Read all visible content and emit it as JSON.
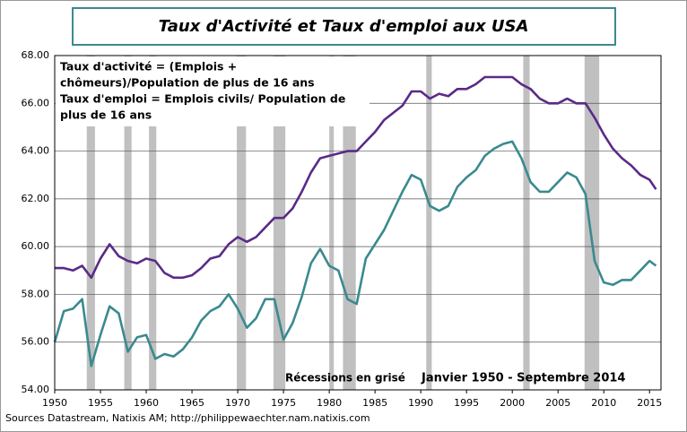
{
  "chart_data": {
    "type": "line",
    "title": "Taux d'Activité et Taux d'emploi aux USA",
    "annotations": [
      "Taux d'activité = (Emplois +",
      "chômeurs)/Population  de plus de 16 ans",
      "Taux d'emploi = Emplois civils/ Population de",
      "plus de 16 ans"
    ],
    "recession_note": "Récessions en grisé",
    "period_note": "Janvier 1950 - Septembre 2014",
    "source": "Sources Datastream, Natixis AM; http://philippewaechter.nam.natixis.com",
    "recession_color": "#c0c0c0",
    "recessions": [
      [
        1953.5,
        1954.4
      ],
      [
        1957.6,
        1958.4
      ],
      [
        1960.3,
        1961.1
      ],
      [
        1969.9,
        1970.9
      ],
      [
        1973.9,
        1975.2
      ],
      [
        1980.0,
        1980.5
      ],
      [
        1981.5,
        1982.9
      ],
      [
        1990.6,
        1991.2
      ],
      [
        2001.2,
        2001.9
      ],
      [
        2007.9,
        2009.5
      ]
    ],
    "x": [
      1950,
      1951,
      1952,
      1953,
      1954,
      1955,
      1956,
      1957,
      1958,
      1959,
      1960,
      1961,
      1962,
      1963,
      1964,
      1965,
      1966,
      1967,
      1968,
      1969,
      1970,
      1971,
      1972,
      1973,
      1974,
      1975,
      1976,
      1977,
      1978,
      1979,
      1980,
      1981,
      1982,
      1983,
      1984,
      1985,
      1986,
      1987,
      1988,
      1989,
      1990,
      1991,
      1992,
      1993,
      1994,
      1995,
      1996,
      1997,
      1998,
      1999,
      2000,
      2001,
      2002,
      2003,
      2004,
      2005,
      2006,
      2007,
      2008,
      2009,
      2010,
      2011,
      2012,
      2013,
      2014,
      2015,
      2015.7
    ],
    "series": [
      {
        "color": "#5b2a86",
        "values": [
          59.1,
          59.1,
          59.0,
          59.2,
          58.7,
          59.5,
          60.1,
          59.6,
          59.4,
          59.3,
          59.5,
          59.4,
          58.9,
          58.7,
          58.7,
          58.8,
          59.1,
          59.5,
          59.6,
          60.1,
          60.4,
          60.2,
          60.4,
          60.8,
          61.2,
          61.2,
          61.6,
          62.3,
          63.1,
          63.7,
          63.8,
          63.9,
          64.0,
          64.0,
          64.4,
          64.8,
          65.3,
          65.6,
          65.9,
          66.5,
          66.5,
          66.2,
          66.4,
          66.3,
          66.6,
          66.6,
          66.8,
          67.1,
          67.1,
          67.1,
          67.1,
          66.8,
          66.6,
          66.2,
          66.0,
          66.0,
          66.2,
          66.0,
          66.0,
          65.4,
          64.7,
          64.1,
          63.7,
          63.4,
          63.0,
          62.8,
          62.4
        ]
      },
      {
        "color": "#3a8a8f",
        "values": [
          56.0,
          57.3,
          57.4,
          57.8,
          55.0,
          56.3,
          57.5,
          57.2,
          55.6,
          56.2,
          56.3,
          55.3,
          55.5,
          55.4,
          55.7,
          56.2,
          56.9,
          57.3,
          57.5,
          58.0,
          57.4,
          56.6,
          57.0,
          57.8,
          57.8,
          56.1,
          56.8,
          57.9,
          59.3,
          59.9,
          59.2,
          59.0,
          57.8,
          57.6,
          59.5,
          60.1,
          60.7,
          61.5,
          62.3,
          63.0,
          62.8,
          61.7,
          61.5,
          61.7,
          62.5,
          62.9,
          63.2,
          63.8,
          64.1,
          64.3,
          64.4,
          63.7,
          62.7,
          62.3,
          62.3,
          62.7,
          63.1,
          62.9,
          62.2,
          59.4,
          58.5,
          58.4,
          58.6,
          58.6,
          59.0,
          59.4,
          59.2
        ]
      }
    ],
    "xlim": [
      1950,
      2016.25
    ],
    "xticks": [
      1950,
      1955,
      1960,
      1965,
      1970,
      1975,
      1980,
      1985,
      1990,
      1995,
      2000,
      2005,
      2010,
      2015
    ],
    "ylim": [
      54,
      68
    ],
    "yticks": [
      {
        "value": 54,
        "label": "54.00"
      },
      {
        "value": 56,
        "label": "56.00"
      },
      {
        "value": 58,
        "label": "58.00"
      },
      {
        "value": 60,
        "label": "60.00"
      },
      {
        "value": 62,
        "label": "62.00"
      },
      {
        "value": 64,
        "label": "64.00"
      },
      {
        "value": 66,
        "label": "66.00"
      },
      {
        "value": 68,
        "label": "68.00"
      }
    ],
    "grid": true
  }
}
